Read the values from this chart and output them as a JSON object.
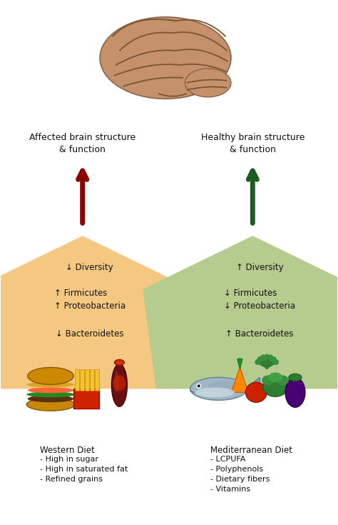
{
  "bg_color": "#ffffff",
  "left_pentagon_color": "#F5C882",
  "right_pentagon_color": "#B5CC8E",
  "left_arrow_color": "#8B0000",
  "right_arrow_color": "#1B5E20",
  "left_label": "Affected brain structure\n& function",
  "right_label": "Healthy brain structure\n& function",
  "left_items_line1": "↓ Diversity",
  "left_items_line2": "↑ Firmicutes\n↑ Proteobacteria",
  "left_items_line3": "↓ Bacteroidetes",
  "right_items_line1": "↑ Diversity",
  "right_items_line2": "↓ Firmicutes\n↓ Proteobacteria",
  "right_items_line3": "↑ Bacteroidetes",
  "left_diet_title": "Western Diet",
  "left_diet_items": [
    "- High in sugar",
    "- High in saturated fat",
    "- Refined grains"
  ],
  "right_diet_title": "Mediterranean Diet",
  "right_diet_items": [
    "- LCPUFA",
    "- Polyphenols",
    "- Dietary fibers",
    "- Vitamins"
  ],
  "text_color": "#111111",
  "brain_color": "#C4916A",
  "brain_dark": "#8B6347"
}
